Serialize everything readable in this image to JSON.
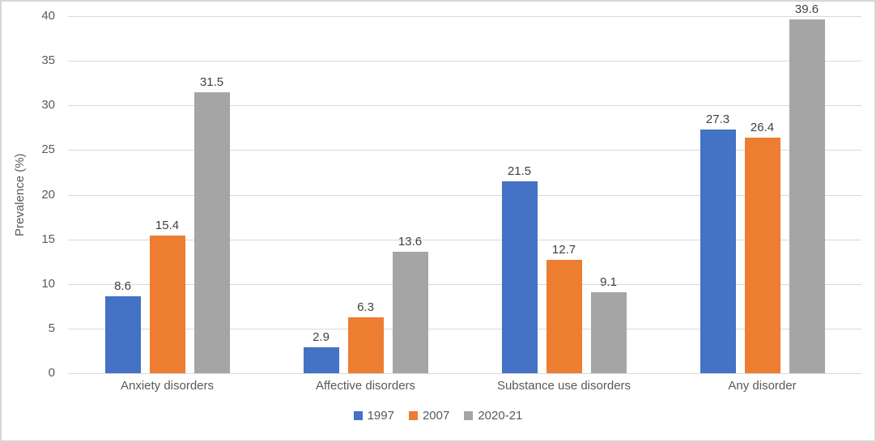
{
  "chart_data": {
    "type": "bar",
    "title": "",
    "categories": [
      "Anxiety disorders",
      "Affective disorders",
      "Substance use disorders",
      "Any disorder"
    ],
    "series": [
      {
        "name": "1997",
        "color": "#4472C4",
        "values": [
          8.6,
          2.9,
          21.5,
          27.3
        ]
      },
      {
        "name": "2007",
        "color": "#ED7D31",
        "values": [
          15.4,
          6.3,
          12.7,
          26.4
        ]
      },
      {
        "name": "2020-21",
        "color": "#A5A5A5",
        "values": [
          31.5,
          13.6,
          9.1,
          39.6
        ]
      }
    ],
    "xlabel": "",
    "ylabel": "Prevalence (%)",
    "ylim": [
      0,
      40
    ],
    "yticks": [
      0,
      5,
      10,
      15,
      20,
      25,
      30,
      35,
      40
    ],
    "grid": true,
    "legend_position": "bottom",
    "value_labels": true,
    "value_decimals": 1
  },
  "style": {
    "gridline_color": "#d9d9d9",
    "axis_text_color": "#595959",
    "value_label_color": "#404040",
    "frame_border_color": "#d6d6d6",
    "background": "#ffffff"
  }
}
